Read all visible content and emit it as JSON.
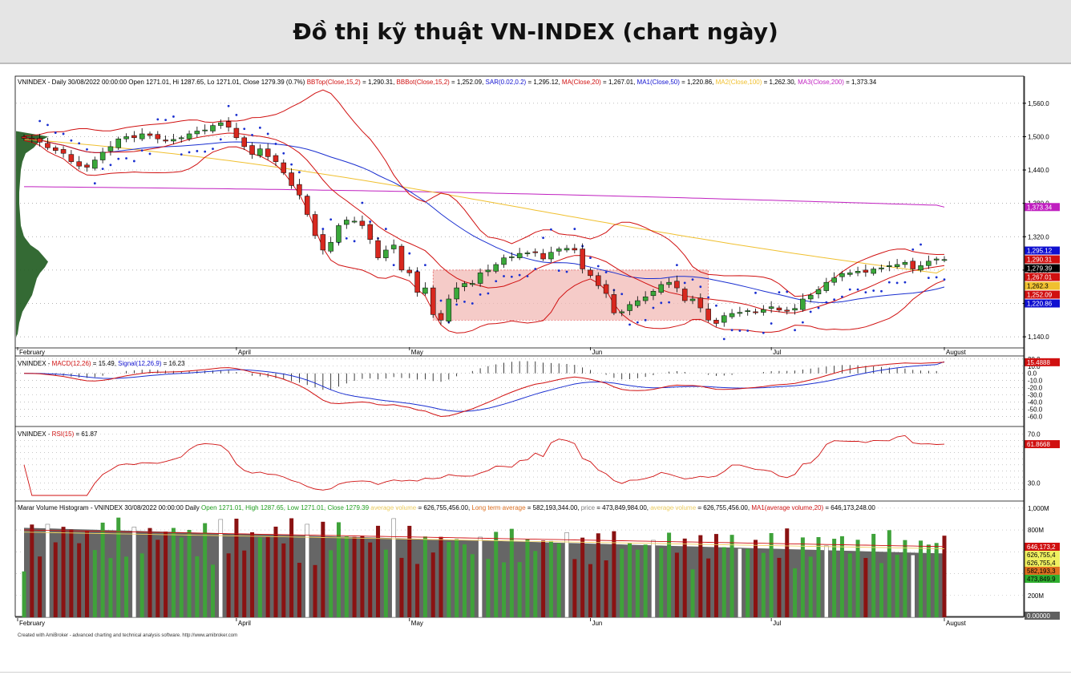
{
  "page": {
    "title": "Đồ thị kỹ thuật VN-INDEX (chart ngày)",
    "credit": "Created with AmiBroker - advanced charting and technical analysis software. http://www.amibroker.com"
  },
  "price_panel": {
    "legend": [
      {
        "text": "VNINDEX - Daily 30/08/2022 00:00:00 Open 1271.01, Hi 1287.65, Lo 1271.01, Close 1279.39 (0.7%) ",
        "color": "#000000"
      },
      {
        "text": "BBTop(Close,15,2)",
        "color": "#d01010"
      },
      {
        "text": " = 1,290.31, ",
        "color": "#000000"
      },
      {
        "text": "BBBot(Close,15,2)",
        "color": "#d01010"
      },
      {
        "text": " = 1,252.09, ",
        "color": "#000000"
      },
      {
        "text": "SAR(0.02,0.2)",
        "color": "#1010d0"
      },
      {
        "text": " = 1,295.12, ",
        "color": "#000000"
      },
      {
        "text": "MA(Close,20)",
        "color": "#d01010"
      },
      {
        "text": " = 1,267.01, ",
        "color": "#000000"
      },
      {
        "text": "MA1(Close,50)",
        "color": "#1010d0"
      },
      {
        "text": " = 1,220.86, ",
        "color": "#000000"
      },
      {
        "text": "MA2(Close,100)",
        "color": "#f0c030"
      },
      {
        "text": " = 1,262.30, ",
        "color": "#000000"
      },
      {
        "text": "MA3(Close,200)",
        "color": "#c020c0"
      },
      {
        "text": " = 1,373.34",
        "color": "#000000"
      }
    ],
    "y_ticks": [
      "1,560.0",
      "1,500.0",
      "1,440.0",
      "1,380.0",
      "1,320.0",
      "1,260.0",
      "1,200.0",
      "1,140.0"
    ],
    "value_tags": [
      {
        "label": "1,373.34",
        "color": "#c020c0",
        "text_color": "#ffffff",
        "value": 1373.34
      },
      {
        "label": "1,295.12",
        "color": "#1010d0",
        "text_color": "#ffffff",
        "value": 1295.12
      },
      {
        "label": "1,290.31",
        "color": "#d01010",
        "text_color": "#ffffff",
        "value": 1290.31
      },
      {
        "label": "1,279.39",
        "color": "#000000",
        "text_color": "#ffffff",
        "value": 1279.39
      },
      {
        "label": "1,267.01",
        "color": "#d01010",
        "text_color": "#ffffff",
        "value": 1267.01
      },
      {
        "label": "1,262.3",
        "color": "#f0c030",
        "text_color": "#000000",
        "value": 1262.3
      },
      {
        "label": "1,252.09",
        "color": "#d01010",
        "text_color": "#ffffff",
        "value": 1252.09
      },
      {
        "label": "1,220.86",
        "color": "#1010d0",
        "text_color": "#ffffff",
        "value": 1220.86
      }
    ]
  },
  "month_labels": [
    "February",
    "April",
    "May",
    "Jun",
    "Jul",
    "August"
  ],
  "macd_panel": {
    "legend": [
      {
        "text": "VNINDEX - ",
        "color": "#000000"
      },
      {
        "text": "MACD(12,26)",
        "color": "#d01010"
      },
      {
        "text": " = 15.49, ",
        "color": "#000000"
      },
      {
        "text": "Signal(12,26,9)",
        "color": "#1010d0"
      },
      {
        "text": " = 16.23",
        "color": "#000000"
      }
    ],
    "y_ticks": [
      "20.0",
      "10.0",
      "0.0",
      "-10.0",
      "-20.0",
      "-30.0",
      "-40.0",
      "-50.0",
      "-60.0"
    ],
    "tag": "15.4888"
  },
  "rsi_panel": {
    "legend": [
      {
        "text": "VNINDEX - ",
        "color": "#000000"
      },
      {
        "text": "RSI(15)",
        "color": "#d01010"
      },
      {
        "text": " = 61.87",
        "color": "#000000"
      }
    ],
    "y_ticks": [
      "70.0",
      "30.0"
    ],
    "tag": "61.8668"
  },
  "volume_panel": {
    "legend": [
      {
        "text": "Marar Volume Histogram - VNINDEX  30/08/2022 00:00:00  Daily  ",
        "color": "#000000"
      },
      {
        "text": "Open 1271.01, High 1287.65, Low 1271.01, Close 1279.39",
        "color": "#20a020"
      },
      {
        "text": "  ",
        "color": "#000000"
      },
      {
        "text": "average volume",
        "color": "#f0d060"
      },
      {
        "text": " = 626,755,456.00, ",
        "color": "#000000"
      },
      {
        "text": "Long term average",
        "color": "#e07020"
      },
      {
        "text": " = 582,193,344.00, ",
        "color": "#000000"
      },
      {
        "text": "price",
        "color": "#808080"
      },
      {
        "text": " = 473,849,984.00, ",
        "color": "#000000"
      },
      {
        "text": "average volume",
        "color": "#f0d060"
      },
      {
        "text": " = 626,755,456.00, ",
        "color": "#000000"
      },
      {
        "text": "MA1(average volume,20)",
        "color": "#d01010"
      },
      {
        "text": " = 646,173,248.00",
        "color": "#000000"
      }
    ],
    "y_ticks": [
      "1,000M",
      "800M",
      "400M",
      "200M"
    ],
    "tags": [
      {
        "label": "646,173,2",
        "color": "#d01010",
        "text_color": "#ffffff"
      },
      {
        "label": "626,755,4",
        "color": "#f0f060",
        "text_color": "#000000"
      },
      {
        "label": "626,755,4",
        "color": "#f0f060",
        "text_color": "#000000"
      },
      {
        "label": "582,193,3",
        "color": "#e07020",
        "text_color": "#000000"
      },
      {
        "label": "473,849,9",
        "color": "#30b030",
        "text_color": "#000000"
      },
      {
        "label": "0.00000",
        "color": "#606060",
        "text_color": "#ffffff"
      }
    ]
  },
  "chart_data": [
    {
      "type": "candlestick",
      "title": "VNINDEX - Daily",
      "y_range": [
        1120,
        1590
      ],
      "x_period": "February–August 2022",
      "approx_close": [
        1497,
        1495,
        1490,
        1480,
        1475,
        1470,
        1455,
        1447,
        1445,
        1458,
        1472,
        1482,
        1496,
        1500,
        1498,
        1505,
        1502,
        1496,
        1492,
        1495,
        1498,
        1505,
        1510,
        1512,
        1520,
        1525,
        1517,
        1498,
        1482,
        1468,
        1478,
        1464,
        1455,
        1435,
        1412,
        1395,
        1360,
        1322,
        1296,
        1310,
        1340,
        1350,
        1348,
        1340,
        1315,
        1282,
        1296,
        1305,
        1260,
        1255,
        1220,
        1228,
        1180,
        1170,
        1208,
        1228,
        1236,
        1236,
        1255,
        1260,
        1270,
        1282,
        1284,
        1290,
        1291,
        1292,
        1280,
        1292,
        1298,
        1299,
        1296,
        1262,
        1250,
        1232,
        1218,
        1183,
        1185,
        1198,
        1205,
        1212,
        1222,
        1234,
        1238,
        1228,
        1205,
        1208,
        1192,
        1170,
        1164,
        1178,
        1182,
        1184,
        1187,
        1184,
        1189,
        1194,
        1188,
        1186,
        1191,
        1208,
        1215,
        1225,
        1238,
        1246,
        1254,
        1255,
        1258,
        1256,
        1262,
        1264,
        1268,
        1270,
        1274,
        1262,
        1268,
        1276,
        1280,
        1279
      ],
      "bb_top_last": 1290.31,
      "bb_bot_last": 1252.09,
      "sar_last": 1295.12,
      "ma20_last": 1267.01,
      "ma50_last": 1220.86,
      "ma100_last": 1262.3,
      "ma200_last": 1373.34,
      "highlight_zone": [
        1170,
        1260
      ]
    },
    {
      "type": "line",
      "title": "MACD(12,26) / Signal(12,26,9)",
      "y_range": [
        -65,
        22
      ],
      "series": [
        {
          "name": "MACD(12,26)",
          "last": 15.49
        },
        {
          "name": "Signal(12,26,9)",
          "last": 16.23
        }
      ]
    },
    {
      "type": "line",
      "title": "RSI(15)",
      "y_range": [
        20,
        75
      ],
      "last": 61.87
    },
    {
      "type": "bar",
      "title": "Marar Volume Histogram",
      "y_range": [
        0,
        1050
      ],
      "unit": "M",
      "last_volume": 473.85,
      "average_volume": 626.76,
      "long_term_average": 582.19,
      "ma20_average_volume": 646.17
    }
  ]
}
